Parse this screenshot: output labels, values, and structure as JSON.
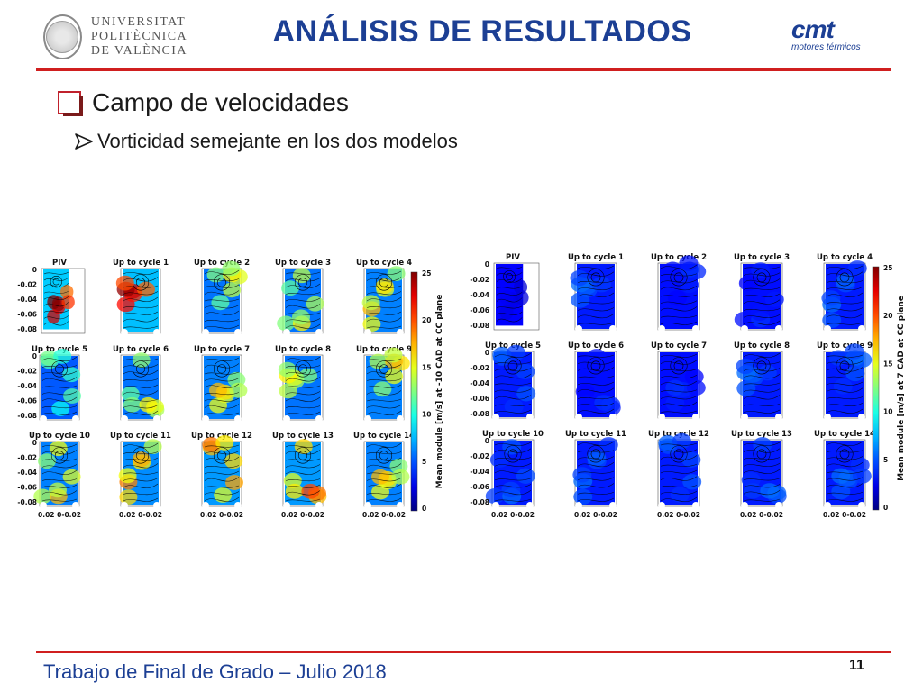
{
  "header": {
    "university_lines": [
      "UNIVERSITAT",
      "POLITÈCNICA",
      "DE VALÈNCIA"
    ],
    "title": "ANÁLISIS DE RESULTADOS",
    "cmt_logo_word": "cmt",
    "cmt_logo_sub": "motores térmicos"
  },
  "content": {
    "bullet_main": "Campo de velocidades",
    "bullet_sub": "Vorticidad semejante en los dos modelos"
  },
  "figures": {
    "left": {
      "panel_titles": [
        "PIV",
        "Up to cycle 1",
        "Up to cycle 2",
        "Up to cycle 3",
        "Up to cycle 4",
        "Up to cycle 5",
        "Up to cycle 6",
        "Up to cycle 7",
        "Up to cycle 8",
        "Up to cycle 9",
        "Up to cycle 10",
        "Up to cycle 11",
        "Up to cycle 12",
        "Up to cycle 13",
        "Up to cycle 14"
      ],
      "y_ticks": [
        "0",
        "-0.02",
        "-0.04",
        "-0.06",
        "-0.08"
      ],
      "x_tick_label": "0.02 0-0.02",
      "colorbar_label": "Mean module [m/s] at -10 CAD at CC plane",
      "colorbar_ticks": [
        "25",
        "20",
        "15",
        "10",
        "5",
        "0"
      ],
      "intensity": [
        0.9,
        0.85,
        0.55,
        0.55,
        0.6,
        0.45,
        0.55,
        0.6,
        0.55,
        0.6,
        0.6,
        0.65,
        0.7,
        0.7,
        0.6
      ]
    },
    "right": {
      "panel_titles": [
        "PIV",
        "Up to cycle 1",
        "Up to cycle 2",
        "Up to cycle 3",
        "Up to cycle 4",
        "Up to cycle 5",
        "Up to cycle 6",
        "Up to cycle 7",
        "Up to cycle 8",
        "Up to cycle 9",
        "Up to cycle 10",
        "Up to cycle 11",
        "Up to cycle 12",
        "Up to cycle 13",
        "Up to cycle 14"
      ],
      "y_ticks": [
        "0",
        "-0.02",
        "-0.04",
        "-0.06",
        "-0.08"
      ],
      "x_tick_label": "0.02 0-0.02",
      "colorbar_label": "Mean module [m/s] at 7 CAD at CC plane",
      "colorbar_ticks": [
        "25",
        "20",
        "15",
        "10",
        "5",
        "0"
      ],
      "intensity": [
        0.1,
        0.2,
        0.15,
        0.15,
        0.2,
        0.2,
        0.15,
        0.15,
        0.2,
        0.2,
        0.2,
        0.2,
        0.2,
        0.2,
        0.2
      ]
    }
  },
  "footer": {
    "text": "Trabajo de Final de Grado – Julio 2018",
    "page_number": "11"
  },
  "colors": {
    "title_blue": "#1c3f94",
    "rule_red": "#d01f1f"
  }
}
